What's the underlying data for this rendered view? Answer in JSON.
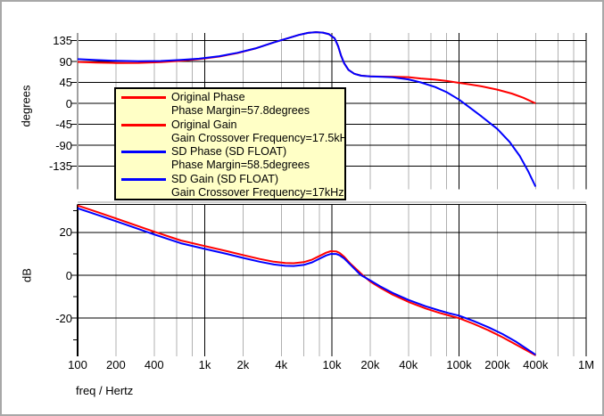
{
  "window": {
    "title": ""
  },
  "colors": {
    "curve_red": "#ff0000",
    "curve_blue": "#0000ff",
    "grid_minor": "#b0b0b0",
    "grid_major": "#000000",
    "axis_inactive": "#a0a0a0",
    "axis_active": "#000000",
    "legend_bg": "#ffffc6",
    "legend_border": "#000000"
  },
  "legend": {
    "items": [
      {
        "color": "#ff0000",
        "label": "Original Phase"
      },
      {
        "label": "Phase Margin=57.8degrees"
      },
      {
        "color": "#ff0000",
        "label": "Original Gain"
      },
      {
        "label": "Gain Crossover Frequency=17.5kHz"
      },
      {
        "color": "#0000ff",
        "label": "SD Phase (SD FLOAT)"
      },
      {
        "label": "Phase Margin=58.5degrees"
      },
      {
        "color": "#0000ff",
        "label": "SD Gain (SD FLOAT)"
      },
      {
        "label": "Gain Crossover Frequency=17kHz"
      }
    ]
  },
  "axes": {
    "x": {
      "label": "freq / Hertz",
      "scale": "log",
      "min": 100,
      "max": 1000000,
      "labeled_ticks": [
        {
          "f": 100,
          "label": "100"
        },
        {
          "f": 200,
          "label": "200"
        },
        {
          "f": 400,
          "label": "400"
        },
        {
          "f": 1000,
          "label": "1k"
        },
        {
          "f": 2000,
          "label": "2k"
        },
        {
          "f": 4000,
          "label": "4k"
        },
        {
          "f": 10000,
          "label": "10k"
        },
        {
          "f": 20000,
          "label": "20k"
        },
        {
          "f": 40000,
          "label": "40k"
        },
        {
          "f": 100000,
          "label": "100k"
        },
        {
          "f": 200000,
          "label": "200k"
        },
        {
          "f": 400000,
          "label": "400k"
        },
        {
          "f": 1000000,
          "label": "1M"
        }
      ]
    },
    "y_top": {
      "label": "degrees",
      "ticks": [
        135,
        90,
        45,
        0,
        -45,
        -90,
        -135
      ]
    },
    "y_bottom": {
      "label": "dB",
      "ticks": [
        20,
        0,
        -20
      ],
      "minor_ticks": [
        30,
        10,
        -10,
        -30
      ]
    }
  },
  "chart_data": [
    {
      "type": "line",
      "panel": "phase",
      "ylabel": "degrees",
      "xlabel": "freq / Hertz",
      "xscale": "log",
      "xlim": [
        100,
        1000000
      ],
      "ylim": [
        -185,
        155
      ],
      "yticks": [
        135,
        90,
        45,
        0,
        -45,
        -90,
        -135
      ],
      "series": [
        {
          "name": "Original Phase",
          "color": "#ff0000",
          "points": [
            [
              100,
              89
            ],
            [
              140,
              87.5
            ],
            [
              200,
              86.8
            ],
            [
              300,
              87
            ],
            [
              450,
              88.5
            ],
            [
              650,
              91.5
            ],
            [
              900,
              95
            ],
            [
              1300,
              100.5
            ],
            [
              1800,
              108
            ],
            [
              2500,
              118
            ],
            [
              3500,
              131
            ],
            [
              4500,
              140
            ],
            [
              5500,
              147
            ],
            [
              6500,
              151.5
            ],
            [
              7500,
              153
            ],
            [
              8500,
              152
            ],
            [
              9500,
              148.5
            ],
            [
              10500,
              140
            ],
            [
              11200,
              123
            ],
            [
              11800,
              103
            ],
            [
              12500,
              86
            ],
            [
              13500,
              72
            ],
            [
              15000,
              63.5
            ],
            [
              17000,
              59.5
            ],
            [
              20000,
              58
            ],
            [
              25000,
              57.5
            ],
            [
              30000,
              57.2
            ],
            [
              40000,
              56.3
            ],
            [
              50000,
              53.5
            ],
            [
              65000,
              51
            ],
            [
              80000,
              48
            ],
            [
              100000,
              44
            ],
            [
              120000,
              41
            ],
            [
              150000,
              36.5
            ],
            [
              200000,
              29.5
            ],
            [
              260000,
              21
            ],
            [
              320000,
              12
            ],
            [
              400000,
              0
            ]
          ]
        },
        {
          "name": "SD Phase (SD FLOAT)",
          "color": "#0000ff",
          "points": [
            [
              100,
              95
            ],
            [
              140,
              93
            ],
            [
              200,
              91.3
            ],
            [
              300,
              90.3
            ],
            [
              450,
              91
            ],
            [
              650,
              93.3
            ],
            [
              900,
              96
            ],
            [
              1300,
              101.3
            ],
            [
              1800,
              108.5
            ],
            [
              2500,
              118
            ],
            [
              3500,
              131
            ],
            [
              4500,
              140
            ],
            [
              5500,
              147
            ],
            [
              6500,
              151.5
            ],
            [
              7500,
              153
            ],
            [
              8500,
              152
            ],
            [
              9500,
              148.5
            ],
            [
              10500,
              140
            ],
            [
              11200,
              123
            ],
            [
              11800,
              103
            ],
            [
              12500,
              86
            ],
            [
              13500,
              72
            ],
            [
              15000,
              63.5
            ],
            [
              17000,
              59.3
            ],
            [
              20000,
              57.8
            ],
            [
              25000,
              57
            ],
            [
              30000,
              56
            ],
            [
              40000,
              51.5
            ],
            [
              50000,
              45
            ],
            [
              65000,
              35
            ],
            [
              80000,
              24
            ],
            [
              100000,
              8
            ],
            [
              120000,
              -8
            ],
            [
              150000,
              -28
            ],
            [
              200000,
              -55
            ],
            [
              250000,
              -83
            ],
            [
              300000,
              -113
            ],
            [
              350000,
              -146
            ],
            [
              400000,
              -179
            ]
          ]
        }
      ]
    },
    {
      "type": "line",
      "panel": "gain",
      "ylabel": "dB",
      "xlabel": "freq / Hertz",
      "xscale": "log",
      "xlim": [
        100,
        1000000
      ],
      "ylim": [
        -38,
        33
      ],
      "yticks": [
        20,
        0,
        -20
      ],
      "series": [
        {
          "name": "Original Gain",
          "color": "#ff0000",
          "points": [
            [
              100,
              32.5
            ],
            [
              150,
              29
            ],
            [
              250,
              24.5
            ],
            [
              400,
              20.3
            ],
            [
              650,
              16.2
            ],
            [
              1000,
              13.6
            ],
            [
              1500,
              11.2
            ],
            [
              2000,
              9.4
            ],
            [
              2700,
              7.6
            ],
            [
              3500,
              6.3
            ],
            [
              4300,
              5.7
            ],
            [
              5000,
              5.6
            ],
            [
              6000,
              6.1
            ],
            [
              7000,
              7.3
            ],
            [
              8000,
              9
            ],
            [
              9000,
              10.5
            ],
            [
              9800,
              11.2
            ],
            [
              10800,
              11.1
            ],
            [
              11500,
              10.4
            ],
            [
              12500,
              8.6
            ],
            [
              14000,
              5.4
            ],
            [
              16000,
              2.2
            ],
            [
              17500,
              0
            ],
            [
              20000,
              -2.9
            ],
            [
              24000,
              -5.8
            ],
            [
              30000,
              -9
            ],
            [
              40000,
              -12.4
            ],
            [
              55000,
              -15.5
            ],
            [
              70000,
              -17.5
            ],
            [
              85000,
              -18.9
            ],
            [
              100000,
              -20
            ],
            [
              130000,
              -22.6
            ],
            [
              170000,
              -25.6
            ],
            [
              220000,
              -28.9
            ],
            [
              280000,
              -32.3
            ],
            [
              340000,
              -35
            ],
            [
              400000,
              -37.3
            ]
          ]
        },
        {
          "name": "SD Gain (SD FLOAT)",
          "color": "#0000ff",
          "points": [
            [
              100,
              31.2
            ],
            [
              150,
              27.7
            ],
            [
              250,
              23.2
            ],
            [
              400,
              19
            ],
            [
              650,
              14.9
            ],
            [
              1000,
              12.3
            ],
            [
              1500,
              9.9
            ],
            [
              2000,
              8.1
            ],
            [
              2700,
              6.3
            ],
            [
              3500,
              5
            ],
            [
              4300,
              4.4
            ],
            [
              5000,
              4.3
            ],
            [
              6000,
              4.8
            ],
            [
              7000,
              6
            ],
            [
              8000,
              7.7
            ],
            [
              9000,
              9.2
            ],
            [
              9800,
              9.9
            ],
            [
              10800,
              9.9
            ],
            [
              11500,
              9.3
            ],
            [
              12500,
              7.8
            ],
            [
              14000,
              4.9
            ],
            [
              16000,
              1.4
            ],
            [
              17000,
              0
            ],
            [
              20000,
              -2.4
            ],
            [
              24000,
              -5.2
            ],
            [
              30000,
              -8.2
            ],
            [
              40000,
              -11.5
            ],
            [
              55000,
              -14.5
            ],
            [
              70000,
              -16.4
            ],
            [
              85000,
              -17.8
            ],
            [
              100000,
              -18.8
            ],
            [
              130000,
              -21.3
            ],
            [
              170000,
              -24.2
            ],
            [
              220000,
              -27.4
            ],
            [
              280000,
              -30.9
            ],
            [
              340000,
              -34.2
            ],
            [
              400000,
              -37
            ]
          ]
        }
      ]
    }
  ]
}
